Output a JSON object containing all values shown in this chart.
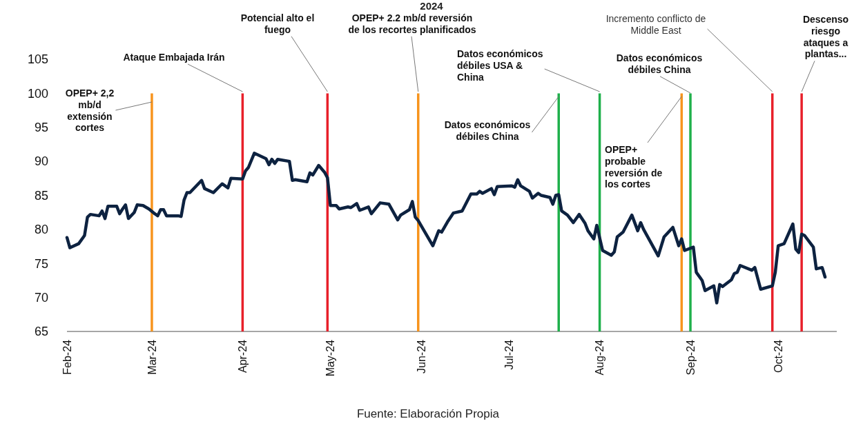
{
  "chart_data": {
    "type": "line",
    "title": "2024",
    "x": [
      "2024-02-01",
      "2024-02-02",
      "2024-02-05",
      "2024-02-07",
      "2024-02-08",
      "2024-02-09",
      "2024-02-12",
      "2024-02-13",
      "2024-02-14",
      "2024-02-15",
      "2024-02-18",
      "2024-02-19",
      "2024-02-20",
      "2024-02-21",
      "2024-02-22",
      "2024-02-24",
      "2024-02-25",
      "2024-02-27",
      "2024-02-29",
      "2024-03-02",
      "2024-03-03",
      "2024-03-04",
      "2024-03-05",
      "2024-03-06",
      "2024-03-10",
      "2024-03-11",
      "2024-03-12",
      "2024-03-13",
      "2024-03-14",
      "2024-03-18",
      "2024-03-19",
      "2024-03-22",
      "2024-03-25",
      "2024-03-27",
      "2024-03-28",
      "2024-04-01",
      "2024-04-02",
      "2024-04-03",
      "2024-04-05",
      "2024-04-09",
      "2024-04-10",
      "2024-04-11",
      "2024-04-12",
      "2024-04-13",
      "2024-04-17",
      "2024-04-18",
      "2024-04-19",
      "2024-04-23",
      "2024-04-24",
      "2024-04-25",
      "2024-04-27",
      "2024-04-29",
      "2024-04-30",
      "2024-05-01",
      "2024-05-03",
      "2024-05-04",
      "2024-05-07",
      "2024-05-08",
      "2024-05-10",
      "2024-05-11",
      "2024-05-14",
      "2024-05-15",
      "2024-05-18",
      "2024-05-21",
      "2024-05-24",
      "2024-05-25",
      "2024-05-28",
      "2024-05-29",
      "2024-05-30",
      "2024-05-31",
      "2024-06-05",
      "2024-06-07",
      "2024-06-08",
      "2024-06-10",
      "2024-06-12",
      "2024-06-15",
      "2024-06-18",
      "2024-06-20",
      "2024-06-21",
      "2024-06-22",
      "2024-06-25",
      "2024-06-26",
      "2024-06-27",
      "2024-07-02",
      "2024-07-03",
      "2024-07-04",
      "2024-07-05",
      "2024-07-08",
      "2024-07-09",
      "2024-07-11",
      "2024-07-12",
      "2024-07-15",
      "2024-07-16",
      "2024-07-17",
      "2024-07-18",
      "2024-07-19",
      "2024-07-21",
      "2024-07-23",
      "2024-07-25",
      "2024-07-27",
      "2024-07-28",
      "2024-07-30",
      "2024-07-31",
      "2024-08-02",
      "2024-08-05",
      "2024-08-06",
      "2024-08-07",
      "2024-08-09",
      "2024-08-12",
      "2024-08-14",
      "2024-08-15",
      "2024-08-16",
      "2024-08-21",
      "2024-08-23",
      "2024-08-26",
      "2024-08-28",
      "2024-08-29",
      "2024-08-30",
      "2024-09-02",
      "2024-09-03",
      "2024-09-05",
      "2024-09-06",
      "2024-09-09",
      "2024-09-10",
      "2024-09-11",
      "2024-09-12",
      "2024-09-15",
      "2024-09-16",
      "2024-09-17",
      "2024-09-18",
      "2024-09-22",
      "2024-09-23",
      "2024-09-25",
      "2024-09-29",
      "2024-09-30",
      "2024-10-01",
      "2024-10-03",
      "2024-10-06",
      "2024-10-07",
      "2024-10-08",
      "2024-10-09",
      "2024-10-10",
      "2024-10-13",
      "2024-10-14",
      "2024-10-16",
      "2024-10-17"
    ],
    "series": [
      {
        "color": "#0d2240",
        "values": [
          78.8,
          77.3,
          77.9,
          79.1,
          81.8,
          82.2,
          82.0,
          82.7,
          81.6,
          83.4,
          83.4,
          82.3,
          83.0,
          83.6,
          81.6,
          82.5,
          83.6,
          83.5,
          83.0,
          82.3,
          82.0,
          82.9,
          82.9,
          82.0,
          82.0,
          81.9,
          84.3,
          85.4,
          85.4,
          87.2,
          86.0,
          85.4,
          86.7,
          86.1,
          87.5,
          87.4,
          88.6,
          89.1,
          91.2,
          90.4,
          89.5,
          90.3,
          89.7,
          90.3,
          90.0,
          87.2,
          87.3,
          87.0,
          88.3,
          88.0,
          89.4,
          88.4,
          87.6,
          83.5,
          83.5,
          83.0,
          83.3,
          83.2,
          83.8,
          82.8,
          83.3,
          82.3,
          83.9,
          83.7,
          81.4,
          82.1,
          82.9,
          84.1,
          81.8,
          81.3,
          77.6,
          79.8,
          79.6,
          81.1,
          82.4,
          82.7,
          85.2,
          85.2,
          85.6,
          85.3,
          86.0,
          85.1,
          86.3,
          86.4,
          86.2,
          87.3,
          86.4,
          85.6,
          84.6,
          85.3,
          85.0,
          84.7,
          83.7,
          85.0,
          85.1,
          82.7,
          82.1,
          81.0,
          82.2,
          80.9,
          79.8,
          78.6,
          80.6,
          76.9,
          76.2,
          76.7,
          78.9,
          79.6,
          82.1,
          79.8,
          81.0,
          80.0,
          76.1,
          78.9,
          80.3,
          77.6,
          78.6,
          76.9,
          77.4,
          73.7,
          72.5,
          71.0,
          71.7,
          69.2,
          71.9,
          71.6,
          72.6,
          73.5,
          73.7,
          74.7,
          74.0,
          74.4,
          71.2,
          71.7,
          73.7,
          77.6,
          77.9,
          80.8,
          77.1,
          76.6,
          79.3,
          79.1,
          77.4,
          74.2,
          74.4,
          73.0
        ]
      }
    ],
    "xlim": [
      "2024-02-01",
      "2024-10-21"
    ],
    "xticks": [
      {
        "value": "2024-02-01",
        "label": "Feb-24"
      },
      {
        "value": "2024-03-01",
        "label": "Mar-24"
      },
      {
        "value": "2024-04-01",
        "label": "Apr-24"
      },
      {
        "value": "2024-05-01",
        "label": "May-24"
      },
      {
        "value": "2024-06-01",
        "label": "Jun-24"
      },
      {
        "value": "2024-07-01",
        "label": "Jul-24"
      },
      {
        "value": "2024-08-01",
        "label": "Aug-24"
      },
      {
        "value": "2024-09-01",
        "label": "Sep-24"
      },
      {
        "value": "2024-10-01",
        "label": "Oct-24"
      }
    ],
    "ylim": [
      65,
      105
    ],
    "yticks": [
      65,
      70,
      75,
      80,
      85,
      90,
      95,
      100,
      105
    ],
    "ref_lines": [
      {
        "axis": "x",
        "value": "2024-03-01",
        "label": "OPEP+ 2,2 mb/d extensión cortes",
        "color": "#f7941d"
      },
      {
        "axis": "x",
        "value": "2024-04-01",
        "label": "Ataque Embajada Irán",
        "color": "#e8202a"
      },
      {
        "axis": "x",
        "value": "2024-04-30",
        "label": "Potencial alto el fuego",
        "color": "#e8202a"
      },
      {
        "axis": "x",
        "value": "2024-05-31",
        "label": "OPEP+ 2.2 mb/d reversión de los recortes planificados",
        "color": "#f7941d"
      },
      {
        "axis": "x",
        "value": "2024-07-18",
        "label": "Datos económicos débiles China",
        "color": "#1fb04b"
      },
      {
        "axis": "x",
        "value": "2024-08-01",
        "label": "Datos económicos débiles USA & China",
        "color": "#1fb04b"
      },
      {
        "axis": "x",
        "value": "2024-08-29",
        "label": "OPEP+ probable reversión de los cortes",
        "color": "#f7941d"
      },
      {
        "axis": "x",
        "value": "2024-09-01",
        "label": "Datos económicos débiles China",
        "color": "#1fb04b"
      },
      {
        "axis": "x",
        "value": "2024-09-29",
        "label": "Incremento conflicto de Middle East",
        "color": "#e8202a"
      },
      {
        "axis": "x",
        "value": "2024-10-09",
        "label": "Descenso riesgo ataques a plantas...",
        "color": "#e8202a"
      }
    ],
    "annotations": [
      "Fuente: Elaboración Propia"
    ]
  }
}
